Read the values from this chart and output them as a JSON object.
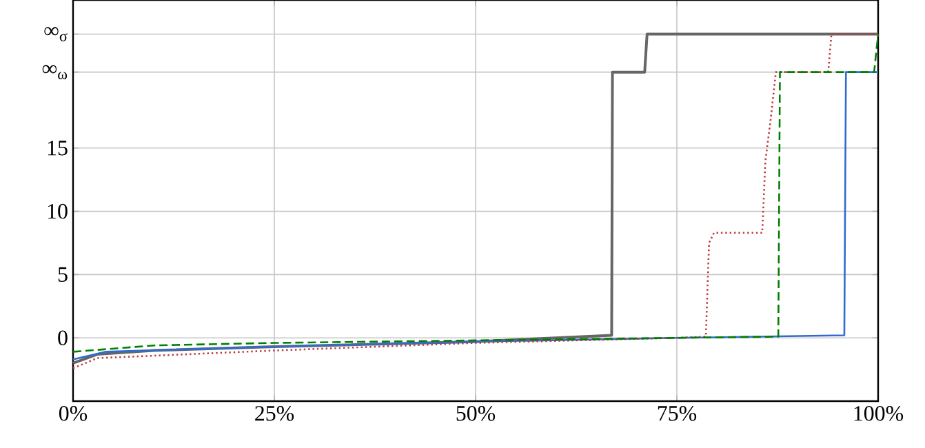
{
  "chart_data": {
    "type": "line",
    "xlim": [
      0,
      100
    ],
    "ylim": [
      -5,
      26.7
    ],
    "xticks": [
      {
        "value": 0,
        "label": "0%"
      },
      {
        "value": 25,
        "label": "25%"
      },
      {
        "value": 50,
        "label": "50%"
      },
      {
        "value": 75,
        "label": "75%"
      },
      {
        "value": 100,
        "label": "100%"
      }
    ],
    "yticks": [
      0,
      5,
      10,
      15,
      {
        "value": 21,
        "label": "∞$_{ω}$"
      },
      {
        "value": 24,
        "label": "∞$_{σ}$"
      }
    ],
    "grid": true,
    "marker": "none",
    "series": [
      {
        "color": "#666666",
        "line_style": "solid",
        "x": [
          0,
          3,
          10,
          25,
          50,
          66.9,
          67.0,
          71.0,
          71.3,
          100
        ],
        "values": [
          -2.0,
          -1.3,
          -1.0,
          -0.7,
          -0.3,
          0.2,
          21,
          21,
          24,
          24
        ]
      },
      {
        "color": "#2f6bd0",
        "line_style": "solid",
        "x": [
          0,
          4,
          25,
          50,
          75,
          95.8,
          96.0,
          100
        ],
        "values": [
          -1.7,
          -1.1,
          -0.7,
          -0.3,
          0,
          0.2,
          21,
          21
        ]
      },
      {
        "color": "#c0393b",
        "line_style": "dotted",
        "x": [
          0,
          3,
          25,
          50,
          75,
          78.6,
          79.0,
          79.6,
          85.6,
          86.0,
          86.6,
          87.3,
          93.8,
          94.2,
          100
        ],
        "values": [
          -2.4,
          -1.6,
          -1.0,
          -0.4,
          0,
          0.1,
          7.5,
          8.3,
          8.3,
          14,
          17,
          21,
          21,
          24,
          24
        ]
      },
      {
        "color": "#008000",
        "line_style": "dashed",
        "x": [
          0,
          10,
          25,
          50,
          75,
          87.6,
          87.8,
          99.5,
          100
        ],
        "values": [
          -1.1,
          -0.6,
          -0.4,
          -0.2,
          0,
          0.1,
          21,
          21,
          24
        ]
      }
    ]
  }
}
